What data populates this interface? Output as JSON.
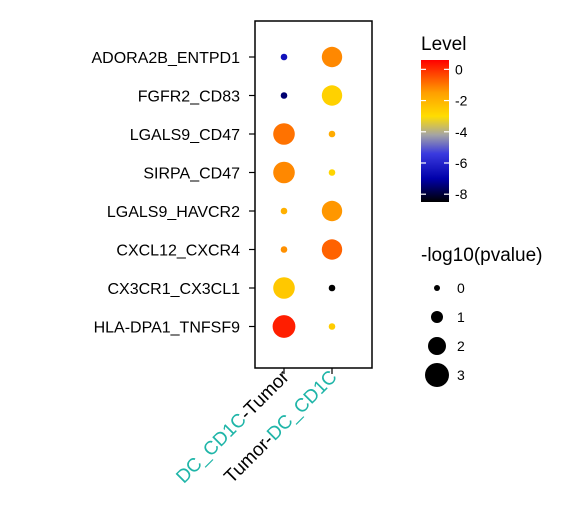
{
  "chart_data": {
    "type": "scatter",
    "x_categories": [
      {
        "parts": [
          "DC_CD1C",
          "-Tumor"
        ],
        "colors": [
          "#1fb5a8",
          "#000000"
        ]
      },
      {
        "parts": [
          "Tumor-",
          "DC_CD1C"
        ],
        "colors": [
          "#000000",
          "#1fb5a8"
        ]
      }
    ],
    "y_categories": [
      "ADORA2B_ENTPD1",
      "FGFR2_CD83",
      "LGALS9_CD47",
      "SIRPA_CD47",
      "LGALS9_HAVCR2",
      "CXCL12_CXCR4",
      "CX3CR1_CX3CL1",
      "HLA-DPA1_TNFSF9"
    ],
    "points": [
      {
        "pair": "ADORA2B_ENTPD1",
        "x": 0,
        "level": -6.5,
        "neglog10p": 0.1
      },
      {
        "pair": "ADORA2B_ENTPD1",
        "x": 1,
        "level": -1.2,
        "neglog10p": 2.4
      },
      {
        "pair": "FGFR2_CD83",
        "x": 0,
        "level": -7.5,
        "neglog10p": 0.1
      },
      {
        "pair": "FGFR2_CD83",
        "x": 1,
        "level": -2.7,
        "neglog10p": 2.4
      },
      {
        "pair": "LGALS9_CD47",
        "x": 0,
        "level": -0.9,
        "neglog10p": 2.6
      },
      {
        "pair": "LGALS9_CD47",
        "x": 1,
        "level": -1.8,
        "neglog10p": 0.1
      },
      {
        "pair": "SIRPA_CD47",
        "x": 0,
        "level": -1.2,
        "neglog10p": 2.6
      },
      {
        "pair": "SIRPA_CD47",
        "x": 1,
        "level": -2.8,
        "neglog10p": 0.1
      },
      {
        "pair": "LGALS9_HAVCR2",
        "x": 0,
        "level": -1.9,
        "neglog10p": 0.1
      },
      {
        "pair": "LGALS9_HAVCR2",
        "x": 1,
        "level": -1.4,
        "neglog10p": 2.4
      },
      {
        "pair": "CXCL12_CXCR4",
        "x": 0,
        "level": -1.3,
        "neglog10p": 0.1
      },
      {
        "pair": "CXCL12_CXCR4",
        "x": 1,
        "level": -0.7,
        "neglog10p": 2.4
      },
      {
        "pair": "CX3CR1_CX3CL1",
        "x": 0,
        "level": -2.5,
        "neglog10p": 2.6
      },
      {
        "pair": "CX3CR1_CX3CL1",
        "x": 1,
        "level": -8.5,
        "neglog10p": 0.1
      },
      {
        "pair": "HLA-DPA1_TNFSF9",
        "x": 0,
        "level": 0.2,
        "neglog10p": 2.8
      },
      {
        "pair": "HLA-DPA1_TNFSF9",
        "x": 1,
        "level": -2.6,
        "neglog10p": 0.1
      }
    ],
    "color_legend": {
      "title": "Level",
      "ticks": [
        "0",
        "-2",
        "-4",
        "-6",
        "-8"
      ],
      "tick_values": [
        0,
        -2,
        -4,
        -6,
        -8
      ],
      "range": [
        -8.5,
        0.6
      ],
      "gradient": [
        {
          "v": 0.6,
          "color": "#ff0000"
        },
        {
          "v": -1.5,
          "color": "#ff9f00"
        },
        {
          "v": -3.0,
          "color": "#ffdd00"
        },
        {
          "v": -4.2,
          "color": "#a4a4a4"
        },
        {
          "v": -5.4,
          "color": "#3a3adf"
        },
        {
          "v": -7.0,
          "color": "#0000aa"
        },
        {
          "v": -8.5,
          "color": "#000000"
        }
      ]
    },
    "size_legend": {
      "title": "-log10(pvalue)",
      "ticks": [
        "0",
        "1",
        "2",
        "3"
      ],
      "tick_values": [
        0,
        1,
        2,
        3
      ]
    },
    "size_scale": {
      "domain": [
        0,
        3
      ],
      "min_radius_px": 3,
      "max_radius_px": 12
    }
  }
}
